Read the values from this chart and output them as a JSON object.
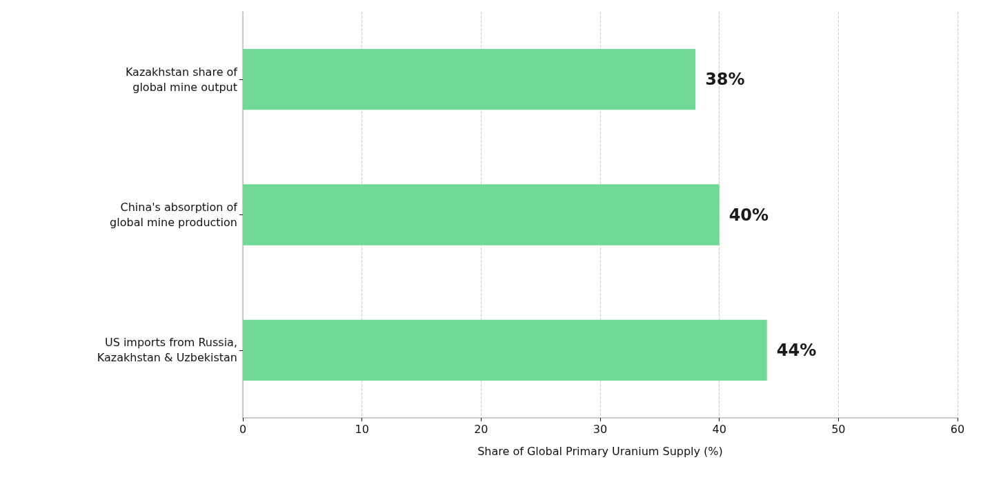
{
  "chart_data": {
    "type": "bar",
    "orientation": "horizontal",
    "xlabel": "Share of Global Primary Uranium Supply (%)",
    "categories": [
      "Kazakhstan share of\nglobal mine output",
      "China's absorption of\nglobal mine production",
      "US imports from Russia,\nKazakhstan & Uzbekistan"
    ],
    "values": [
      38,
      40,
      44
    ],
    "color": "#6fd995",
    "value_labels": [
      "38%",
      "40%",
      "44%"
    ],
    "xlim": [
      0,
      60
    ],
    "xticks": [
      0,
      10,
      20,
      30,
      40,
      50,
      60
    ],
    "grid": "x"
  }
}
